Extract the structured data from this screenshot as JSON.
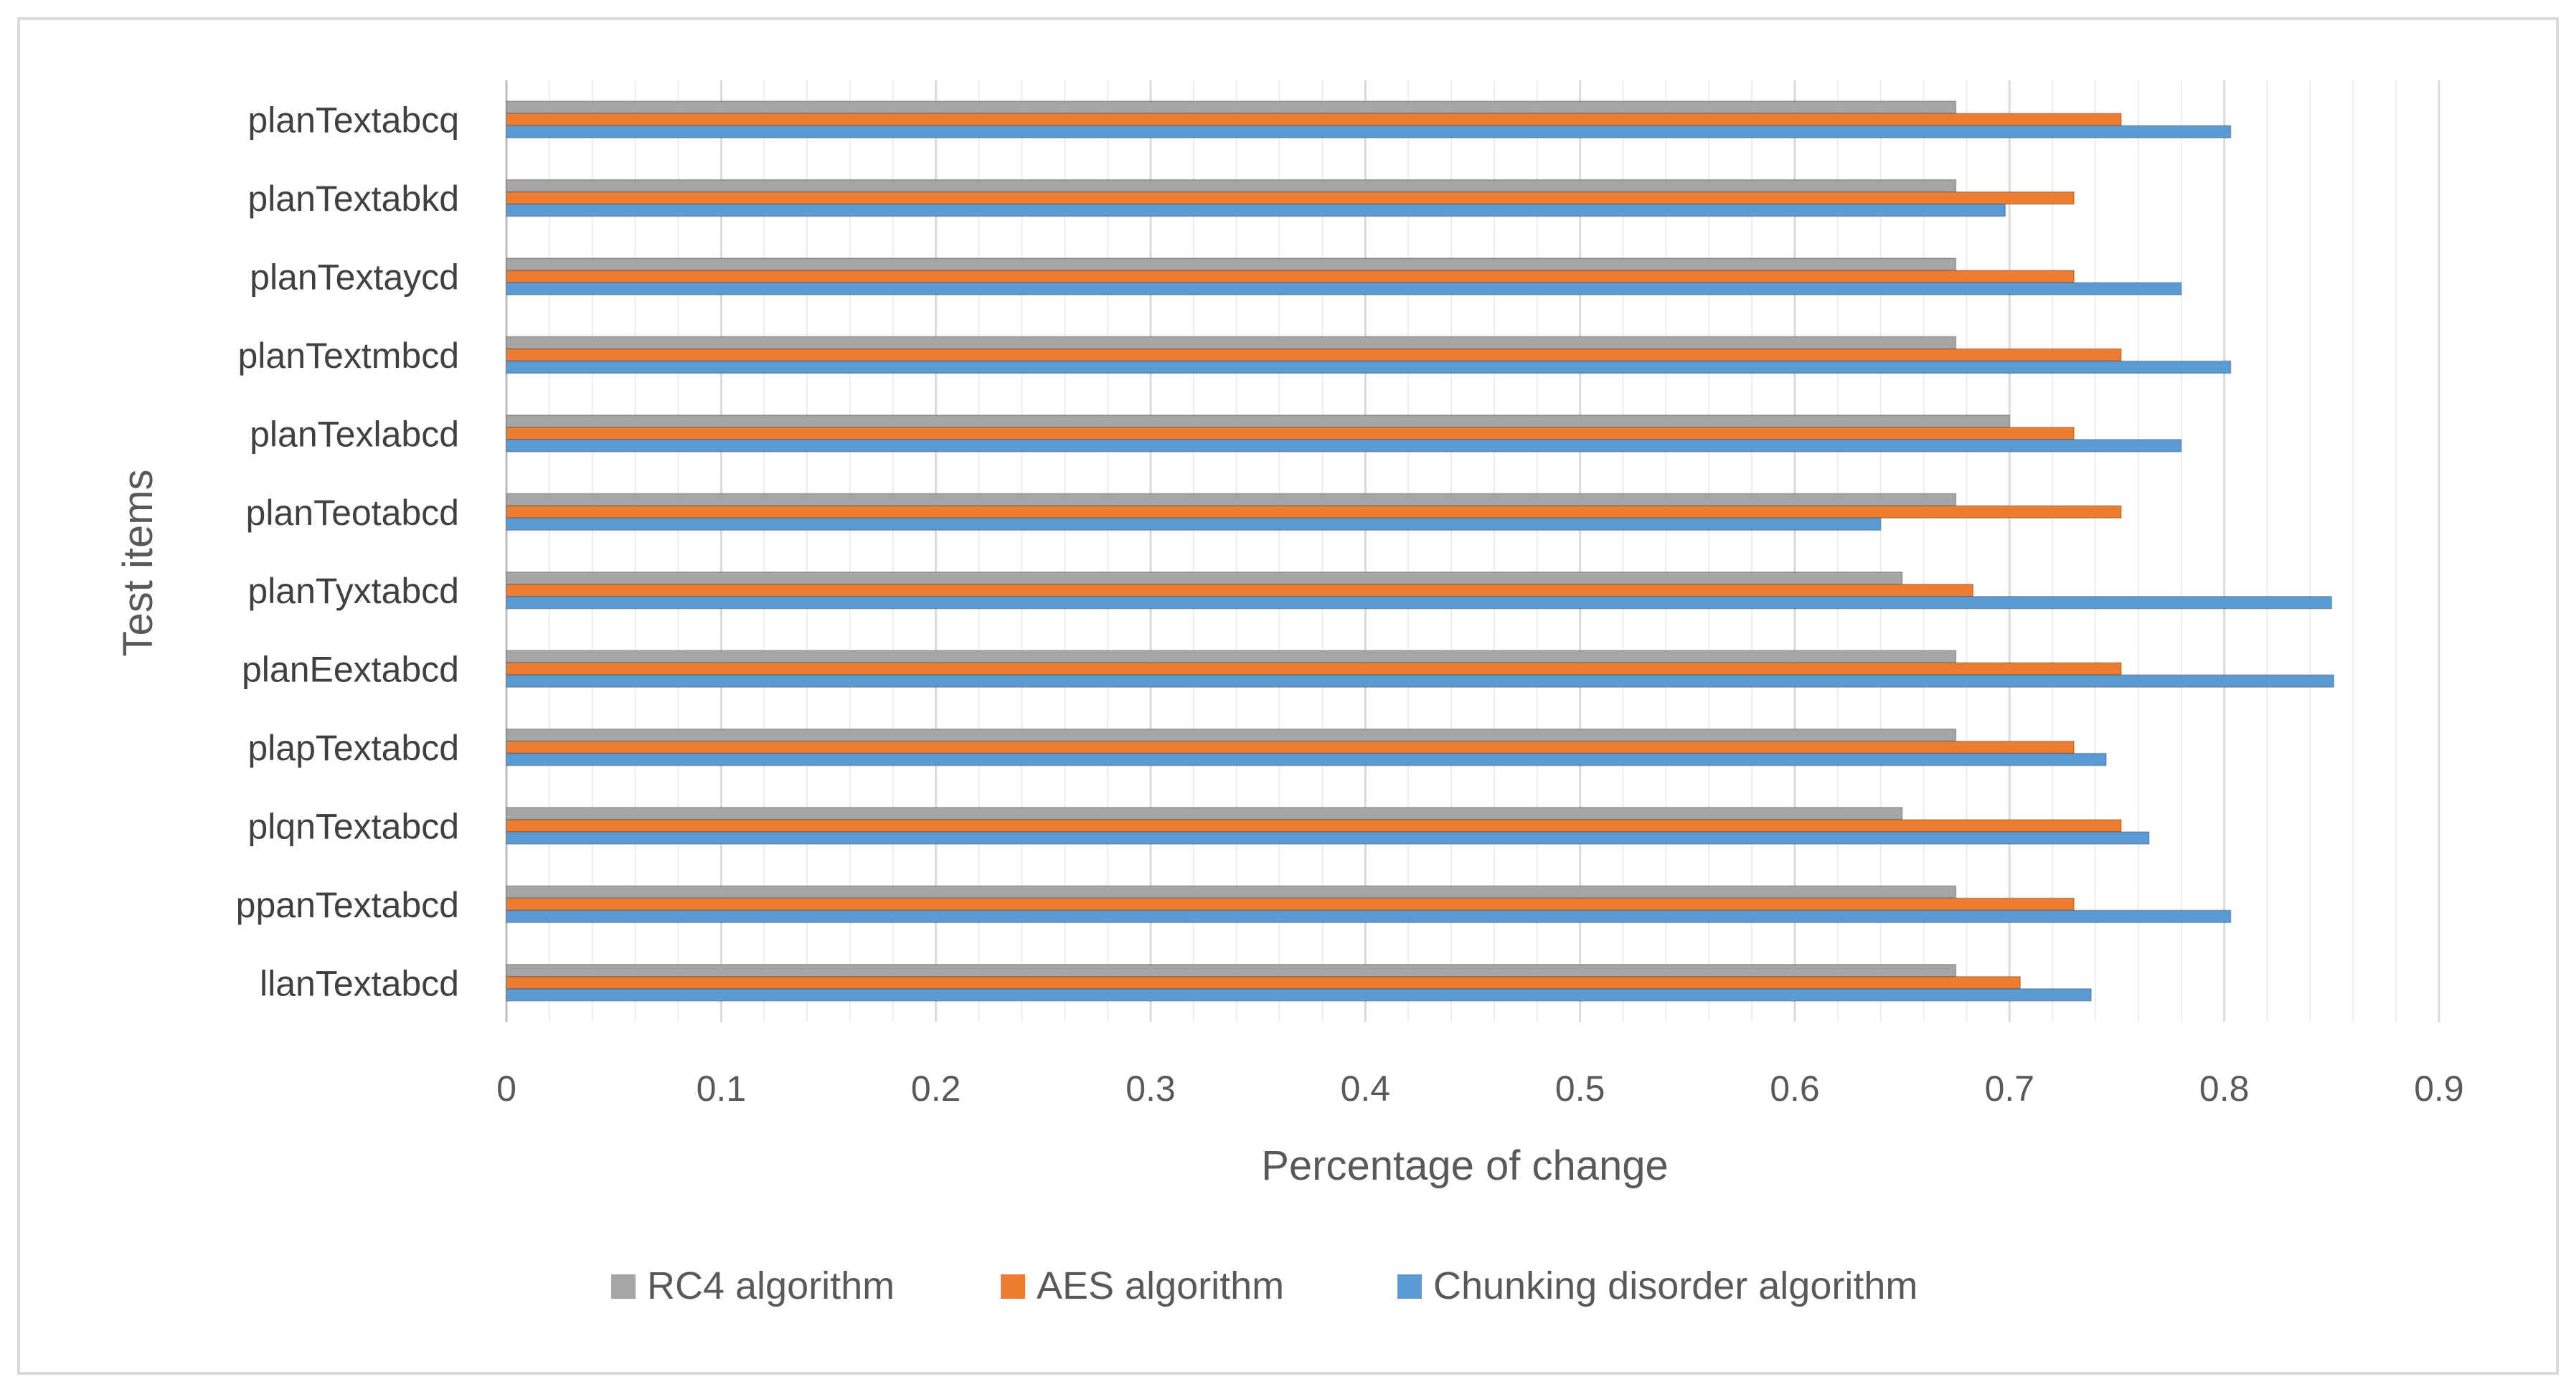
{
  "chart_data": {
    "type": "bar",
    "orientation": "horizontal",
    "title": "",
    "xlabel": "Percentage of change",
    "ylabel": "Test items",
    "xlim": [
      0,
      0.9
    ],
    "xticks": [
      "0",
      "0.1",
      "0.2",
      "0.3",
      "0.4",
      "0.5",
      "0.6",
      "0.7",
      "0.8",
      "0.9"
    ],
    "grid": true,
    "legend_position": "bottom",
    "categories": [
      "llanTextabcd",
      "ppanTextabcd",
      "plqnTextabcd",
      "plapTextabcd",
      "planEextabcd",
      "planTyxtabcd",
      "planTeotabcd",
      "planTexlabcd",
      "planTextmbcd",
      "planTextaycd",
      "planTextabkd",
      "planTextabcq"
    ],
    "series": [
      {
        "name": "RC4 algorithm",
        "color": "#a5a5a5",
        "values": [
          0.675,
          0.675,
          0.65,
          0.675,
          0.675,
          0.65,
          0.675,
          0.7,
          0.675,
          0.675,
          0.675,
          0.675
        ]
      },
      {
        "name": "AES  algorithm",
        "color": "#ed7d31",
        "values": [
          0.705,
          0.73,
          0.752,
          0.73,
          0.752,
          0.683,
          0.752,
          0.73,
          0.752,
          0.73,
          0.73,
          0.752
        ]
      },
      {
        "name": "Chunking disorder algorithm",
        "color": "#5b9bd5",
        "values": [
          0.738,
          0.803,
          0.765,
          0.745,
          0.851,
          0.85,
          0.64,
          0.78,
          0.803,
          0.78,
          0.698,
          0.803
        ]
      }
    ]
  }
}
